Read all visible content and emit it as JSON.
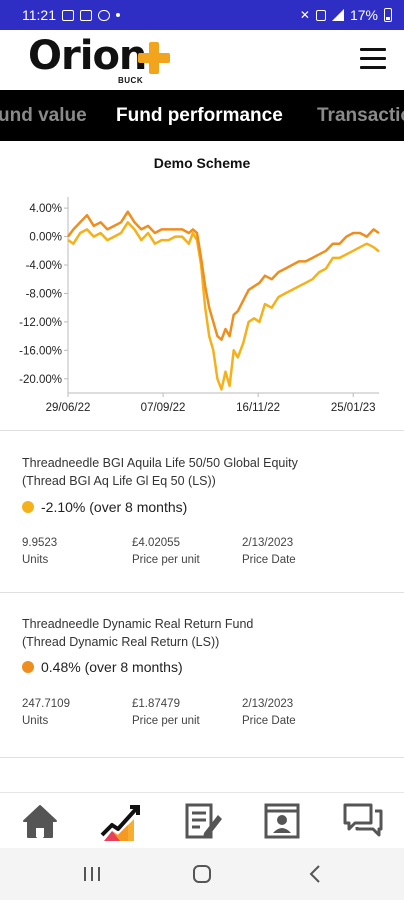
{
  "status_bar": {
    "time": "11:21",
    "battery": "17%"
  },
  "header": {
    "logo_text": "Orion",
    "logo_sub": "BUCK",
    "menu_icon": "hamburger-menu-icon"
  },
  "tabs": [
    {
      "label": "und value",
      "active": false
    },
    {
      "label": "Fund performance",
      "active": true
    },
    {
      "label": "Transactio",
      "active": false
    }
  ],
  "chart_data": {
    "type": "line",
    "title": "Demo Scheme",
    "xlabel": "",
    "ylabel": "",
    "x_tick_labels": [
      "29/06/22",
      "07/09/22",
      "16/11/22",
      "25/01/23"
    ],
    "y_tick_labels": [
      "4.00%",
      "0.00%",
      "-4.00%",
      "-8.00%",
      "-12.00%",
      "-16.00%",
      "-20.00%"
    ],
    "ylim": [
      -22,
      5
    ],
    "x_range": [
      "2022-06-29",
      "2023-02-13"
    ],
    "grid": false,
    "series": [
      {
        "color": "#f5b11a",
        "x": [
          "2022-06-29",
          "2022-07-03",
          "2022-07-08",
          "2022-07-13",
          "2022-07-18",
          "2022-07-23",
          "2022-07-28",
          "2022-08-02",
          "2022-08-07",
          "2022-08-12",
          "2022-08-17",
          "2022-08-22",
          "2022-08-27",
          "2022-09-01",
          "2022-09-06",
          "2022-09-11",
          "2022-09-16",
          "2022-09-21",
          "2022-09-26",
          "2022-09-29",
          "2022-10-02",
          "2022-10-05",
          "2022-10-08",
          "2022-10-11",
          "2022-10-14",
          "2022-10-17",
          "2022-10-20",
          "2022-10-23",
          "2022-10-26",
          "2022-10-29",
          "2022-11-01",
          "2022-11-05",
          "2022-11-09",
          "2022-11-13",
          "2022-11-17",
          "2022-11-21",
          "2022-11-26",
          "2022-12-01",
          "2022-12-06",
          "2022-12-11",
          "2022-12-16",
          "2022-12-21",
          "2022-12-26",
          "2022-12-31",
          "2023-01-05",
          "2023-01-10",
          "2023-01-15",
          "2023-01-20",
          "2023-01-25",
          "2023-01-30",
          "2023-02-04",
          "2023-02-09",
          "2023-02-13"
        ],
        "values": [
          -0.5,
          -1.0,
          0.5,
          1.0,
          0.0,
          0.5,
          -0.5,
          0.0,
          0.5,
          2.0,
          1.0,
          -0.5,
          0.5,
          -1.0,
          -0.5,
          -0.5,
          0.0,
          0.0,
          -1.0,
          0.5,
          -0.5,
          -4.0,
          -10.0,
          -14.0,
          -16.0,
          -20.0,
          -21.5,
          -19.0,
          -21.0,
          -16.0,
          -17.0,
          -15.0,
          -12.0,
          -11.5,
          -12.0,
          -9.5,
          -10.0,
          -8.5,
          -8.0,
          -7.5,
          -7.0,
          -6.5,
          -6.0,
          -5.0,
          -4.5,
          -3.0,
          -3.0,
          -2.5,
          -2.0,
          -1.5,
          -1.0,
          -1.5,
          -2.1
        ]
      },
      {
        "color": "#ee8e1e",
        "x": [
          "2022-06-29",
          "2022-07-03",
          "2022-07-08",
          "2022-07-13",
          "2022-07-18",
          "2022-07-23",
          "2022-07-28",
          "2022-08-02",
          "2022-08-07",
          "2022-08-12",
          "2022-08-17",
          "2022-08-22",
          "2022-08-27",
          "2022-09-01",
          "2022-09-06",
          "2022-09-11",
          "2022-09-16",
          "2022-09-21",
          "2022-09-26",
          "2022-09-29",
          "2022-10-02",
          "2022-10-05",
          "2022-10-08",
          "2022-10-11",
          "2022-10-14",
          "2022-10-17",
          "2022-10-20",
          "2022-10-23",
          "2022-10-26",
          "2022-10-29",
          "2022-11-01",
          "2022-11-05",
          "2022-11-09",
          "2022-11-13",
          "2022-11-17",
          "2022-11-21",
          "2022-11-26",
          "2022-12-01",
          "2022-12-06",
          "2022-12-11",
          "2022-12-16",
          "2022-12-21",
          "2022-12-26",
          "2022-12-31",
          "2023-01-05",
          "2023-01-10",
          "2023-01-15",
          "2023-01-20",
          "2023-01-25",
          "2023-01-30",
          "2023-02-04",
          "2023-02-09",
          "2023-02-13"
        ],
        "values": [
          0.0,
          1.0,
          2.0,
          3.0,
          1.5,
          2.0,
          1.0,
          1.5,
          2.0,
          3.5,
          2.0,
          1.0,
          1.5,
          0.5,
          1.0,
          1.0,
          1.0,
          1.0,
          0.5,
          1.0,
          0.5,
          -3.0,
          -7.0,
          -10.0,
          -12.0,
          -14.0,
          -14.5,
          -13.0,
          -14.0,
          -11.0,
          -10.5,
          -9.0,
          -7.5,
          -7.0,
          -6.5,
          -5.5,
          -6.0,
          -5.0,
          -4.5,
          -4.0,
          -3.5,
          -3.5,
          -3.0,
          -2.5,
          -2.0,
          -1.0,
          -1.0,
          0.0,
          0.5,
          0.5,
          0.0,
          1.0,
          0.48
        ]
      }
    ]
  },
  "funds": [
    {
      "name_line1": "Threadneedle BGI Aquila Life 50/50 Global Equity",
      "name_line2": "(Thread BGI Aq Life Gl Eq 50 (LS))",
      "dot_color": "#f5b11a",
      "performance": "-2.10% (over 8 months)",
      "units_value": "9.9523",
      "units_label": "Units",
      "price_value": "£4.02055",
      "price_label": "Price per unit",
      "date_value": "2/13/2023",
      "date_label": "Price Date"
    },
    {
      "name_line1": "Threadneedle Dynamic Real Return Fund",
      "name_line2": "(Thread Dynamic Real Return (LS))",
      "dot_color": "#ee8e1e",
      "performance": "0.48% (over 8 months)",
      "units_value": "247.7109",
      "units_label": "Units",
      "price_value": "£1.87479",
      "price_label": "Price per unit",
      "date_value": "2/13/2023",
      "date_label": "Price Date"
    }
  ],
  "bottom_nav": [
    {
      "icon": "home-icon"
    },
    {
      "icon": "performance-chart-icon",
      "active": true
    },
    {
      "icon": "document-edit-icon"
    },
    {
      "icon": "profile-card-icon"
    },
    {
      "icon": "chat-icon"
    }
  ]
}
